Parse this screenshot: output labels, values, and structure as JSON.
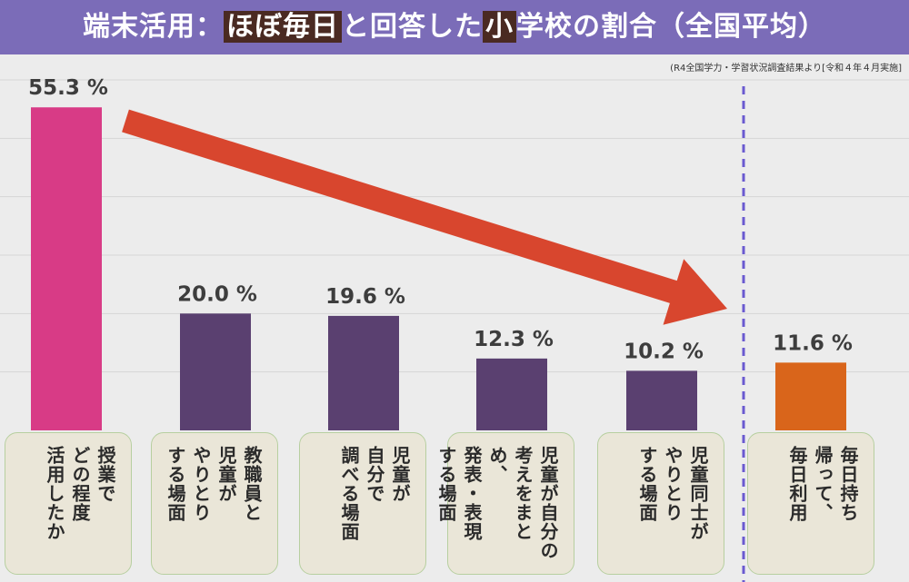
{
  "title": {
    "prefix": "端末活用：",
    "highlight1": "ほぼ毎日",
    "middle": "と回答した",
    "highlight2": "小",
    "suffix": "学校の割合（全国平均）"
  },
  "source_note": "(R4全国学力・学習状況調査結果より[令和４年４月実施]",
  "colors": {
    "title_bg": "#7b6cb8",
    "highlight_bg": "#4a2a22",
    "bar_pink": "#d83b86",
    "bar_purple": "#5a4070",
    "bar_orange": "#d9651b",
    "arrow": "#d8462e",
    "divider": "#6a5ad0"
  },
  "chart_data": {
    "type": "bar",
    "categories": [
      "授業で\nどの程度\n活用したか",
      "教職員と\n児童が\nやりとり\nする場面",
      "児童が\n自分で\n調べる場面",
      "児童が自分の\n考えをまとめ、\n発表・表現\nする場面",
      "児童同士が\nやりとり\nする場面",
      "毎日持ち\n帰って、\n毎日利用"
    ],
    "values": [
      55.3,
      20.0,
      19.6,
      12.3,
      10.2,
      11.6
    ],
    "labels": [
      "55.3 %",
      "20.0 %",
      "19.6 %",
      "12.3 %",
      "10.2 %",
      "11.6 %"
    ],
    "bar_colors": [
      "#d83b86",
      "#5a4070",
      "#5a4070",
      "#5a4070",
      "#5a4070",
      "#d9651b"
    ],
    "ylim": [
      0,
      60
    ],
    "grid": true,
    "annotations": [
      "downward arrow from first bar toward fifth bar",
      "dashed vertical divider before last bar"
    ]
  }
}
